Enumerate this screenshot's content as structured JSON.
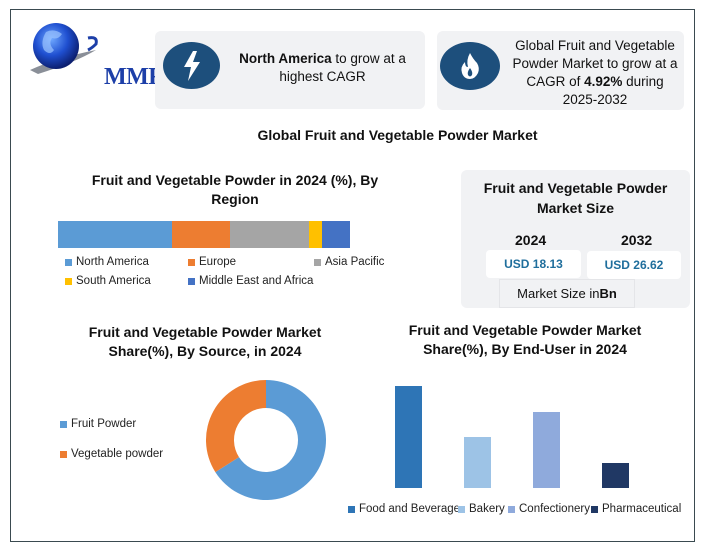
{
  "logo": {
    "text": "MMR"
  },
  "highlights": [
    {
      "icon": "lightning-icon",
      "bold": "North America",
      "text": " to grow at a highest CAGR"
    },
    {
      "icon": "flame-icon",
      "pre": "Global Fruit and Vegetable Powder Market to grow at a CAGR of ",
      "bold": "4.92%",
      "post": " during 2025-2032"
    }
  ],
  "main_title": "Global Fruit and Vegetable Powder Market",
  "market_size": {
    "title": "Fruit and Vegetable Powder Market Size",
    "year1": "2024",
    "year2": "2032",
    "value1": "USD 18.13",
    "value2": "USD 26.62",
    "unit_pre": "Market Size in ",
    "unit_bold": "Bn"
  },
  "colors": {
    "icon_bg": "#1d4f7c",
    "card_bg": "#f1f2f4",
    "value_text": "#1f6e9c"
  },
  "chart_data": [
    {
      "type": "bar",
      "orientation": "horizontal-stacked",
      "title": "Fruit and Vegetable Powder in 2024 (%), By Region",
      "categories": [
        "North America",
        "Europe",
        "Asia Pacific",
        "South America",
        "Middle East and Africa"
      ],
      "values": [
        39,
        20,
        27,
        4.5,
        9.5
      ],
      "colors": [
        "#5b9bd5",
        "#ed7d31",
        "#a5a5a5",
        "#ffc000",
        "#4472c4"
      ],
      "legend_position": "bottom",
      "grid": false
    },
    {
      "type": "pie",
      "variant": "donut",
      "title": "Fruit and Vegetable Powder Market Share(%), By Source, in 2024",
      "categories": [
        "Fruit Powder",
        "Vegetable powder"
      ],
      "values": [
        66,
        34
      ],
      "colors": [
        "#5b9bd5",
        "#ed7d31"
      ],
      "legend_position": "left"
    },
    {
      "type": "bar",
      "title": "Fruit and Vegetable Powder Market Share(%), By  End-User in 2024",
      "categories": [
        "Food and Beverage",
        "Bakery",
        "Confectionery",
        "Pharmaceutical"
      ],
      "values": [
        40,
        20,
        30,
        10
      ],
      "colors": [
        "#2e75b6",
        "#9dc3e6",
        "#8faadc",
        "#203864"
      ],
      "legend_position": "bottom",
      "grid": false,
      "ylim": [
        0,
        40
      ]
    }
  ]
}
